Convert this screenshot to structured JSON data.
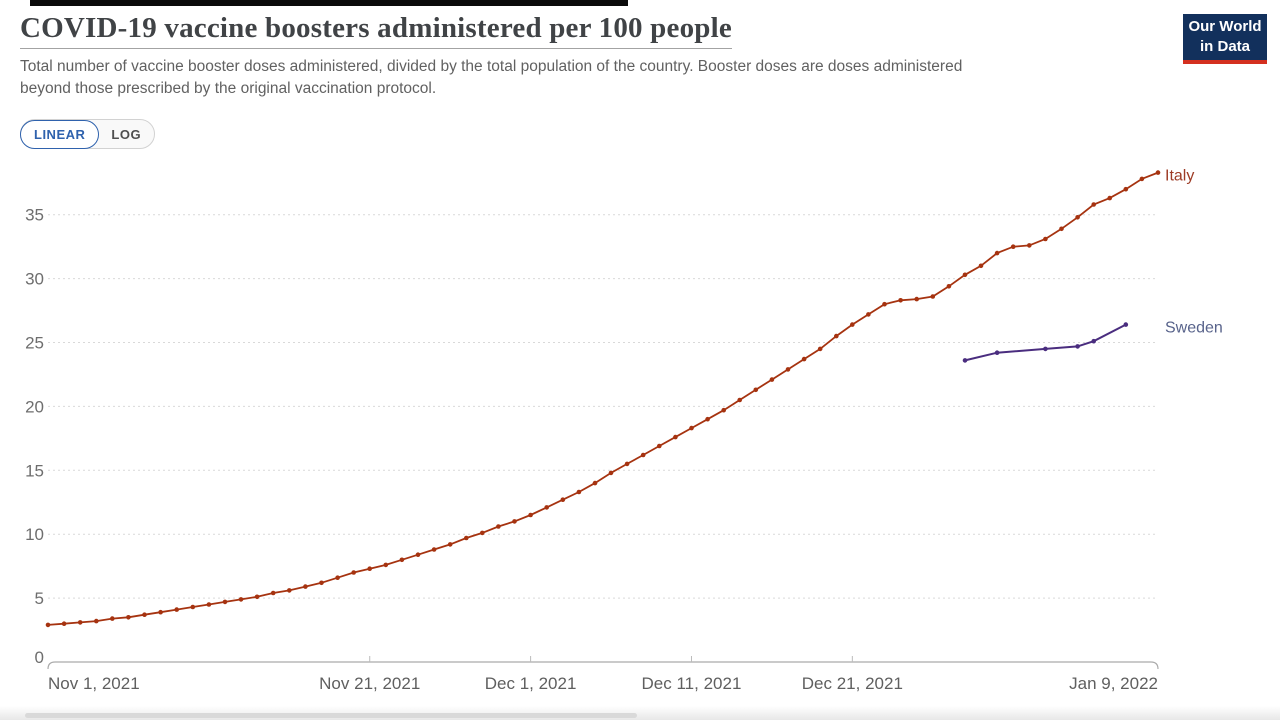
{
  "header": {
    "title": "COVID-19 vaccine boosters administered per 100 people",
    "subtitle_line1": "Total number of vaccine booster doses administered, divided by the total population of the country. Booster doses are doses administered",
    "subtitle_line2": "beyond those prescribed by the original vaccination protocol.",
    "logo": {
      "line1": "Our World",
      "line2": "in Data",
      "bg_color": "#12305c",
      "accent_color": "#d4301f"
    }
  },
  "controls": {
    "scale_options": [
      {
        "label": "LINEAR",
        "selected": true
      },
      {
        "label": "LOG",
        "selected": false
      }
    ]
  },
  "chart_data": {
    "type": "line",
    "title": "COVID-19 vaccine boosters administered per 100 people",
    "x_axis": {
      "start_date": "Nov 1, 2021",
      "end_date": "Jan 9, 2022",
      "domain_days": [
        0,
        69
      ],
      "tick_days": [
        0,
        20,
        30,
        40,
        50,
        69
      ],
      "tick_labels": [
        "Nov 1, 2021",
        "Nov 21, 2021",
        "Dec 1, 2021",
        "Dec 11, 2021",
        "Dec 21, 2021",
        "Jan 9, 2022"
      ]
    },
    "y_axis": {
      "ticks": [
        0,
        5,
        10,
        15,
        20,
        25,
        30,
        35
      ],
      "ylim": [
        0,
        38.5
      ],
      "gridlines": "dashed"
    },
    "legend_position": "end-of-line-labels",
    "series": [
      {
        "name": "Italy",
        "color": "#a63310",
        "label_color": "#9d3b25",
        "x_days": [
          0,
          1,
          2,
          3,
          4,
          5,
          6,
          7,
          8,
          9,
          10,
          11,
          12,
          13,
          14,
          15,
          16,
          17,
          18,
          19,
          20,
          21,
          22,
          23,
          24,
          25,
          26,
          27,
          28,
          29,
          30,
          31,
          32,
          33,
          34,
          35,
          36,
          37,
          38,
          39,
          40,
          41,
          42,
          43,
          44,
          45,
          46,
          47,
          48,
          49,
          50,
          51,
          52,
          53,
          54,
          55,
          56,
          57,
          58,
          59,
          60,
          61,
          62,
          63,
          64,
          65,
          66,
          67,
          68,
          69
        ],
        "values": [
          2.9,
          3.0,
          3.1,
          3.2,
          3.4,
          3.5,
          3.7,
          3.9,
          4.1,
          4.3,
          4.5,
          4.7,
          4.9,
          5.1,
          5.4,
          5.6,
          5.9,
          6.2,
          6.6,
          7.0,
          7.3,
          7.6,
          8.0,
          8.4,
          8.8,
          9.2,
          9.7,
          10.1,
          10.6,
          11.0,
          11.5,
          12.1,
          12.7,
          13.3,
          14.0,
          14.8,
          15.5,
          16.2,
          16.9,
          17.6,
          18.3,
          19.0,
          19.7,
          20.5,
          21.3,
          22.1,
          22.9,
          23.7,
          24.5,
          25.5,
          26.4,
          27.2,
          28.0,
          28.3,
          28.4,
          28.6,
          29.4,
          30.3,
          31.0,
          32.0,
          32.5,
          32.6,
          33.1,
          33.9,
          34.8,
          35.8,
          36.3,
          37.0,
          37.8,
          38.3
        ]
      },
      {
        "name": "Sweden",
        "color": "#4a2d7f",
        "label_color": "#58638b",
        "x_days": [
          57,
          59,
          62,
          64,
          65,
          67
        ],
        "dates": [
          "Dec 28, 2021",
          "Dec 30, 2021",
          "Jan 2, 2022",
          "Jan 4, 2022",
          "Jan 5, 2022",
          "Jan 7, 2022"
        ],
        "values": [
          23.6,
          24.2,
          24.5,
          24.7,
          25.1,
          26.4
        ]
      }
    ]
  }
}
